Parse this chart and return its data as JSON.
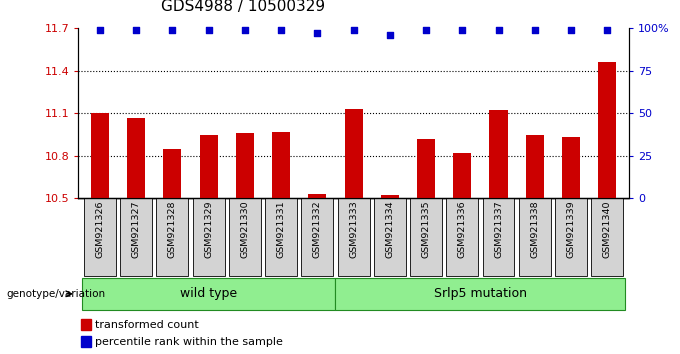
{
  "title": "GDS4988 / 10500329",
  "samples": [
    "GSM921326",
    "GSM921327",
    "GSM921328",
    "GSM921329",
    "GSM921330",
    "GSM921331",
    "GSM921332",
    "GSM921333",
    "GSM921334",
    "GSM921335",
    "GSM921336",
    "GSM921337",
    "GSM921338",
    "GSM921339",
    "GSM921340"
  ],
  "bar_values": [
    11.1,
    11.07,
    10.85,
    10.95,
    10.96,
    10.97,
    10.53,
    11.13,
    10.52,
    10.92,
    10.82,
    11.12,
    10.95,
    10.93,
    11.46
  ],
  "percentile_values": [
    99,
    99,
    99,
    99,
    99,
    99,
    97,
    99,
    96,
    99,
    99,
    99,
    99,
    99,
    99
  ],
  "bar_color": "#cc0000",
  "dot_color": "#0000cc",
  "ylim_left": [
    10.5,
    11.7
  ],
  "ylim_right": [
    0,
    100
  ],
  "yticks_left": [
    10.5,
    10.8,
    11.1,
    11.4,
    11.7
  ],
  "yticks_right": [
    0,
    25,
    50,
    75,
    100
  ],
  "ytick_labels_left": [
    "10.5",
    "10.8",
    "11.1",
    "11.4",
    "11.7"
  ],
  "ytick_labels_right": [
    "0",
    "25",
    "50",
    "75",
    "100%"
  ],
  "hlines": [
    10.8,
    11.1,
    11.4
  ],
  "wild_type_count": 7,
  "mutation_count": 8,
  "wild_type_label": "wild type",
  "mutation_label": "Srlp5 mutation",
  "genotype_label": "genotype/variation",
  "legend_bar_label": "transformed count",
  "legend_dot_label": "percentile rank within the sample",
  "group_fill_color": "#90ee90",
  "group_edge_color": "#228B22",
  "label_box_color": "#d3d3d3",
  "left_tick_color": "#cc0000",
  "right_tick_color": "#0000cc",
  "base_value": 10.5,
  "title_fontsize": 11,
  "bar_width": 0.5
}
